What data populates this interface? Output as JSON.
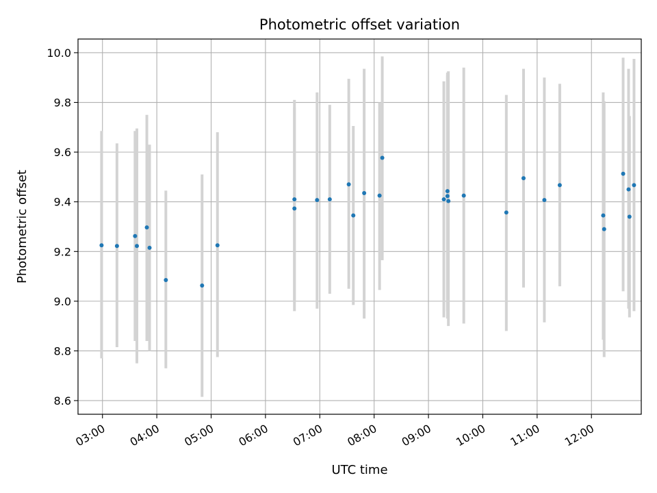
{
  "chart_data": {
    "type": "scatter",
    "title": "Photometric offset variation",
    "xlabel": "UTC time",
    "ylabel": "Photometric offset",
    "x_ticks": [
      "03:00",
      "04:00",
      "05:00",
      "06:00",
      "07:00",
      "08:00",
      "09:00",
      "10:00",
      "11:00",
      "12:00"
    ],
    "y_ticks": [
      "8.6",
      "8.8",
      "9.0",
      "9.2",
      "9.4",
      "9.6",
      "9.8",
      "10.0"
    ],
    "xlim": [
      "02:33",
      "12:55"
    ],
    "ylim": [
      8.545,
      10.055
    ],
    "grid": true,
    "colors": {
      "points": "#1f77b4",
      "errorbars": "#d3d3d3",
      "grid": "#b0b0b0"
    },
    "points": [
      {
        "x": "02:59",
        "y": 9.225,
        "low": 8.77,
        "high": 9.685
      },
      {
        "x": "03:16",
        "y": 9.222,
        "low": 8.815,
        "high": 9.635
      },
      {
        "x": "03:36",
        "y": 9.262,
        "low": 8.84,
        "high": 9.685
      },
      {
        "x": "03:38",
        "y": 9.222,
        "low": 8.75,
        "high": 9.695
      },
      {
        "x": "03:49",
        "y": 9.297,
        "low": 8.84,
        "high": 9.75
      },
      {
        "x": "03:52",
        "y": 9.215,
        "low": 8.8,
        "high": 9.63
      },
      {
        "x": "04:10",
        "y": 9.085,
        "low": 8.73,
        "high": 9.445
      },
      {
        "x": "04:50",
        "y": 9.063,
        "low": 8.615,
        "high": 9.51
      },
      {
        "x": "05:07",
        "y": 9.225,
        "low": 8.775,
        "high": 9.68
      },
      {
        "x": "06:32",
        "y": 9.41,
        "low": 8.96,
        "high": 9.81
      },
      {
        "x": "06:32",
        "y": 9.373,
        "low": 9.0,
        "high": 9.78
      },
      {
        "x": "06:57",
        "y": 9.407,
        "low": 8.97,
        "high": 9.84
      },
      {
        "x": "07:11",
        "y": 9.41,
        "low": 9.03,
        "high": 9.79
      },
      {
        "x": "07:32",
        "y": 9.47,
        "low": 9.05,
        "high": 9.895
      },
      {
        "x": "07:37",
        "y": 9.345,
        "low": 8.985,
        "high": 9.705
      },
      {
        "x": "07:49",
        "y": 9.435,
        "low": 8.93,
        "high": 9.935
      },
      {
        "x": "08:06",
        "y": 9.425,
        "low": 9.045,
        "high": 9.8
      },
      {
        "x": "08:09",
        "y": 9.577,
        "low": 9.165,
        "high": 9.985
      },
      {
        "x": "09:17",
        "y": 9.41,
        "low": 8.935,
        "high": 9.885
      },
      {
        "x": "09:21",
        "y": 9.443,
        "low": 8.96,
        "high": 9.91
      },
      {
        "x": "09:21",
        "y": 9.423,
        "low": 8.93,
        "high": 9.92
      },
      {
        "x": "09:22",
        "y": 9.403,
        "low": 8.9,
        "high": 9.925
      },
      {
        "x": "09:39",
        "y": 9.425,
        "low": 8.91,
        "high": 9.94
      },
      {
        "x": "10:26",
        "y": 9.357,
        "low": 8.88,
        "high": 9.83
      },
      {
        "x": "10:45",
        "y": 9.495,
        "low": 9.055,
        "high": 9.935
      },
      {
        "x": "11:08",
        "y": 9.407,
        "low": 8.915,
        "high": 9.9
      },
      {
        "x": "11:25",
        "y": 9.467,
        "low": 9.06,
        "high": 9.875
      },
      {
        "x": "12:13",
        "y": 9.345,
        "low": 8.845,
        "high": 9.84
      },
      {
        "x": "12:14",
        "y": 9.29,
        "low": 8.775,
        "high": 9.805
      },
      {
        "x": "12:35",
        "y": 9.513,
        "low": 9.04,
        "high": 9.98
      },
      {
        "x": "12:41",
        "y": 9.45,
        "low": 8.97,
        "high": 9.935
      },
      {
        "x": "12:42",
        "y": 9.34,
        "low": 8.935,
        "high": 9.745
      },
      {
        "x": "12:47",
        "y": 9.467,
        "low": 8.96,
        "high": 9.975
      }
    ]
  }
}
